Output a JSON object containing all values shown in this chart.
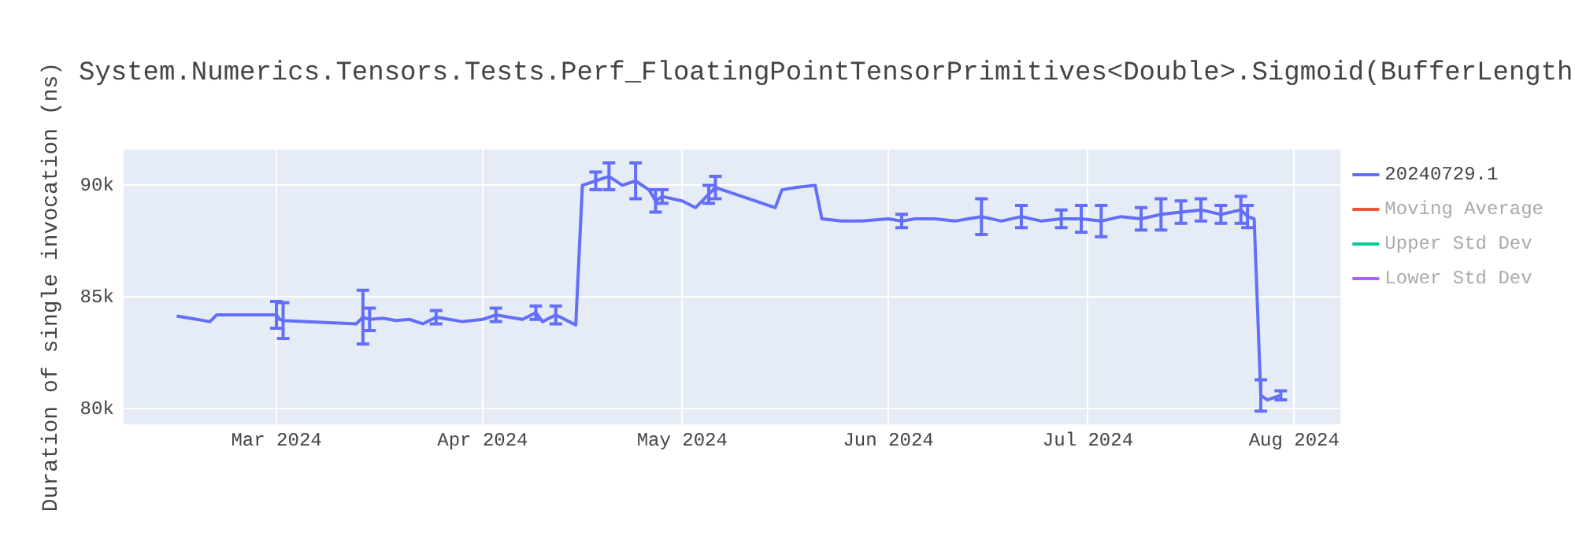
{
  "chart_data": {
    "type": "line",
    "title": "System.Numerics.Tensors.Tests.Perf_FloatingPointTensorPrimitives<Double>.Sigmoid(BufferLength",
    "ylabel": "Duration of single invocation (ns)",
    "x": [
      "2024-02-15",
      "2024-02-17",
      "2024-02-20",
      "2024-02-21",
      "2024-03-01",
      "2024-03-01T12:00",
      "2024-03-02",
      "2024-03-13",
      "2024-03-14",
      "2024-03-15",
      "2024-03-17",
      "2024-03-19",
      "2024-03-21",
      "2024-03-23",
      "2024-03-25",
      "2024-03-27",
      "2024-03-29",
      "2024-04-01",
      "2024-04-03",
      "2024-04-05",
      "2024-04-07",
      "2024-04-09",
      "2024-04-10",
      "2024-04-12",
      "2024-04-15",
      "2024-04-16",
      "2024-04-18",
      "2024-04-20",
      "2024-04-22",
      "2024-04-24",
      "2024-04-26",
      "2024-04-27",
      "2024-04-28",
      "2024-05-01",
      "2024-05-03",
      "2024-05-05",
      "2024-05-06",
      "2024-05-08",
      "2024-05-15",
      "2024-05-16",
      "2024-05-18",
      "2024-05-21",
      "2024-05-22",
      "2024-05-25",
      "2024-05-28",
      "2024-06-01",
      "2024-06-03",
      "2024-06-05",
      "2024-06-08",
      "2024-06-11",
      "2024-06-13",
      "2024-06-15",
      "2024-06-18",
      "2024-06-21",
      "2024-06-24",
      "2024-06-27",
      "2024-06-30",
      "2024-07-03",
      "2024-07-06",
      "2024-07-09",
      "2024-07-12",
      "2024-07-15",
      "2024-07-18",
      "2024-07-21",
      "2024-07-24",
      "2024-07-25",
      "2024-07-26",
      "2024-07-27",
      "2024-07-28",
      "2024-07-30"
    ],
    "series": [
      {
        "name": "20240729.1",
        "color": "#636efa",
        "values": [
          84150,
          84050,
          83900,
          84200,
          84200,
          84000,
          83950,
          83800,
          84100,
          84000,
          84050,
          83950,
          84000,
          83800,
          84100,
          84000,
          83900,
          84000,
          84200,
          84100,
          84000,
          84300,
          83900,
          84200,
          83750,
          90000,
          90200,
          90400,
          90000,
          90200,
          89800,
          89300,
          89500,
          89300,
          89000,
          89600,
          89900,
          89700,
          89000,
          89800,
          89900,
          90000,
          88500,
          88400,
          88400,
          88500,
          88400,
          88500,
          88500,
          88400,
          88500,
          88600,
          88400,
          88600,
          88400,
          88500,
          88500,
          88400,
          88600,
          88500,
          88700,
          88800,
          88900,
          88700,
          88900,
          88600,
          88500,
          80600,
          80400,
          80600
        ],
        "errors": [
          null,
          null,
          null,
          null,
          0.6,
          null,
          0.8,
          null,
          1.2,
          0.5,
          null,
          null,
          null,
          null,
          0.3,
          null,
          null,
          null,
          0.3,
          null,
          null,
          0.3,
          null,
          0.4,
          null,
          null,
          0.4,
          0.6,
          null,
          0.8,
          null,
          0.5,
          0.3,
          null,
          null,
          0.4,
          0.5,
          null,
          null,
          null,
          null,
          null,
          null,
          null,
          null,
          null,
          0.3,
          null,
          null,
          null,
          null,
          0.8,
          null,
          0.5,
          null,
          0.4,
          0.6,
          0.7,
          null,
          0.5,
          0.7,
          0.5,
          0.5,
          0.4,
          0.6,
          0.5,
          null,
          0.7,
          null,
          0.2
        ]
      },
      {
        "name": "Moving Average",
        "color": "#ef553b",
        "values": [
          null,
          null,
          null,
          null,
          null,
          null,
          null,
          null,
          null,
          null,
          null,
          null,
          null,
          null,
          null,
          null,
          null,
          null,
          null,
          null,
          null,
          null,
          null,
          null,
          null,
          null,
          null,
          null,
          null,
          null,
          null,
          null,
          null,
          null,
          null,
          null,
          null,
          null,
          null,
          null,
          null,
          null,
          null,
          null,
          null,
          null,
          null,
          null,
          null,
          null,
          null,
          null,
          null,
          null,
          null,
          null,
          null,
          null,
          null,
          null,
          null,
          null,
          null,
          null,
          null,
          null,
          null,
          null,
          null,
          null
        ]
      },
      {
        "name": "Upper Std Dev",
        "color": "#00cc96",
        "values": [
          null,
          null,
          null,
          null,
          null,
          null,
          null,
          null,
          null,
          null,
          null,
          null,
          null,
          null,
          null,
          null,
          null,
          null,
          null,
          null,
          null,
          null,
          null,
          null,
          null,
          null,
          null,
          null,
          null,
          null,
          null,
          null,
          null,
          null,
          null,
          null,
          null,
          null,
          null,
          null,
          null,
          null,
          null,
          null,
          null,
          null,
          null,
          null,
          null,
          null,
          null,
          null,
          null,
          null,
          null,
          null,
          null,
          null,
          null,
          null,
          null,
          null,
          null,
          null,
          null,
          null,
          null,
          null,
          null,
          null
        ]
      },
      {
        "name": "Lower Std Dev",
        "color": "#ab63fa",
        "values": [
          null,
          null,
          null,
          null,
          null,
          null,
          null,
          null,
          null,
          null,
          null,
          null,
          null,
          null,
          null,
          null,
          null,
          null,
          null,
          null,
          null,
          null,
          null,
          null,
          null,
          null,
          null,
          null,
          null,
          null,
          null,
          null,
          null,
          null,
          null,
          null,
          null,
          null,
          null,
          null,
          null,
          null,
          null,
          null,
          null,
          null,
          null,
          null,
          null,
          null,
          null,
          null,
          null,
          null,
          null,
          null,
          null,
          null,
          null,
          null,
          null,
          null,
          null,
          null,
          null,
          null,
          null,
          null,
          null,
          null
        ]
      }
    ],
    "xlim": [
      "2024-02-07",
      "2024-08-08"
    ],
    "xticks": [
      {
        "value": "2024-03-01",
        "label": "Mar 2024"
      },
      {
        "value": "2024-04-01",
        "label": "Apr 2024"
      },
      {
        "value": "2024-05-01",
        "label": "May 2024"
      },
      {
        "value": "2024-06-01",
        "label": "Jun 2024"
      },
      {
        "value": "2024-07-01",
        "label": "Jul 2024"
      },
      {
        "value": "2024-08-01",
        "label": "Aug 2024"
      }
    ],
    "ylim": [
      79300,
      91600
    ],
    "yticks": [
      {
        "value": 80000,
        "label": "80k"
      },
      {
        "value": 85000,
        "label": "85k"
      },
      {
        "value": 90000,
        "label": "90k"
      }
    ],
    "grid": true,
    "legend": "right",
    "marker": "none",
    "line_style": "solid"
  }
}
